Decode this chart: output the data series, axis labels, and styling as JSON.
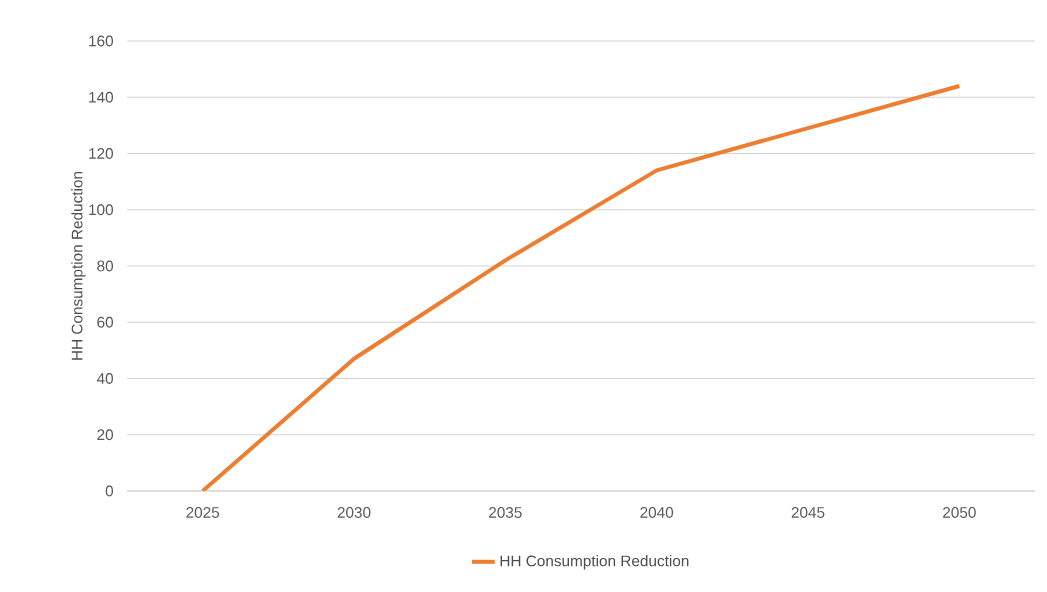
{
  "chart_data": {
    "type": "line",
    "ylabel": "HH Consumption Reduction",
    "categories": [
      "2025",
      "2030",
      "2035",
      "2040",
      "2045",
      "2050"
    ],
    "series": [
      {
        "name": "HH Consumption Reduction",
        "color": "#ed7d31",
        "values": [
          0,
          47,
          82,
          114,
          129,
          144
        ]
      }
    ],
    "ylim": [
      0,
      160
    ],
    "yticks": [
      0,
      20,
      40,
      60,
      80,
      100,
      120,
      140,
      160
    ],
    "grid": "y",
    "legend": "bottom"
  }
}
